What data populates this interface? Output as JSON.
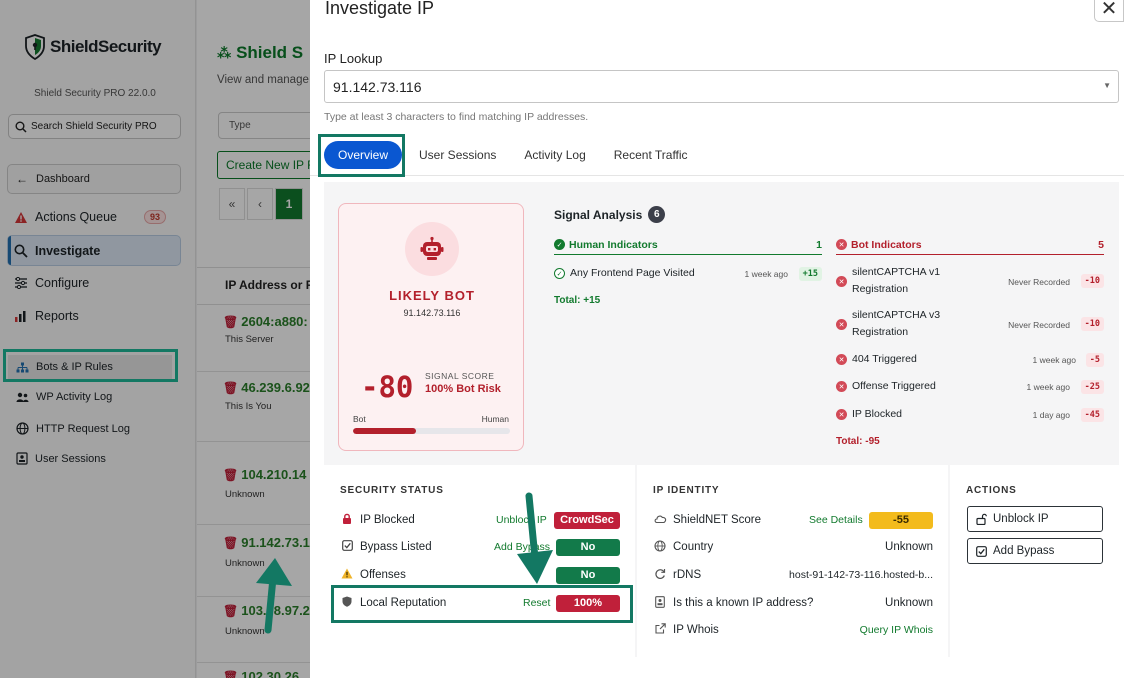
{
  "sidebar": {
    "logo_text": "ShieldSecurity",
    "version": "Shield Security PRO 22.0.0",
    "search_placeholder": "Search Shield Security PRO",
    "dashboard_label": "Dashboard",
    "main_items": [
      {
        "label": "Actions Queue",
        "badge": "93"
      },
      {
        "label": "Investigate"
      },
      {
        "label": "Configure"
      },
      {
        "label": "Reports"
      }
    ],
    "sub_items": [
      {
        "label": "Bots & IP Rules"
      },
      {
        "label": "WP Activity Log"
      },
      {
        "label": "HTTP Request Log"
      },
      {
        "label": "User Sessions"
      }
    ]
  },
  "background_page": {
    "title": "Shield S",
    "subtitle": "View and manage",
    "type_placeholder": "Type",
    "create_button": "Create New IP R",
    "pagination": {
      "first": "«",
      "prev": "‹",
      "current": "1"
    },
    "table_header": "IP Address or R",
    "rows": [
      {
        "ip": "2604:a880:",
        "note": "This Server"
      },
      {
        "ip": "46.239.6.92",
        "note": "This Is You"
      },
      {
        "ip": "104.210.14",
        "note": "Unknown"
      },
      {
        "ip": "91.142.73.1",
        "note": "Unknown"
      },
      {
        "ip": "103.78.97.2",
        "note": "Unknown"
      },
      {
        "ip": "102.30.26.",
        "note": ""
      }
    ]
  },
  "modal": {
    "title": "Investigate IP",
    "close_glyph": "✕",
    "lookup_label": "IP Lookup",
    "lookup_value": "91.142.73.116",
    "lookup_help": "Type at least 3 characters to find matching IP addresses.",
    "tabs": [
      {
        "label": "Overview",
        "active": true
      },
      {
        "label": "User Sessions"
      },
      {
        "label": "Activity Log"
      },
      {
        "label": "Recent Traffic"
      }
    ]
  },
  "bot_card": {
    "verdict": "LIKELY BOT",
    "ip": "91.142.73.116",
    "score": "-80",
    "score_label": "SIGNAL SCORE",
    "risk": "100% Bot Risk",
    "meter_left": "Bot",
    "meter_right": "Human",
    "meter_bot_fraction": 0.4
  },
  "signal_analysis": {
    "title": "Signal Analysis",
    "count": "6",
    "human": {
      "heading": "Human Indicators",
      "count": "1",
      "items": [
        {
          "name": "Any Frontend Page Visited",
          "when": "1 week ago",
          "points": "+15"
        }
      ],
      "total": "Total: +15"
    },
    "bot": {
      "heading": "Bot Indicators",
      "count": "5",
      "items": [
        {
          "name_line1": "silentCAPTCHA v1",
          "name_line2": "Registration",
          "when": "Never Recorded",
          "points": "-10"
        },
        {
          "name_line1": "silentCAPTCHA v3",
          "name_line2": "Registration",
          "when": "Never Recorded",
          "points": "-10"
        },
        {
          "name_line1": "404 Triggered",
          "name_line2": "",
          "when": "1 week ago",
          "points": "-5"
        },
        {
          "name_line1": "Offense Triggered",
          "name_line2": "",
          "when": "1 week ago",
          "points": "-25"
        },
        {
          "name_line1": "IP Blocked",
          "name_line2": "",
          "when": "1 day ago",
          "points": "-45"
        }
      ],
      "total": "Total: -95"
    }
  },
  "security_status": {
    "title": "SECURITY STATUS",
    "rows": [
      {
        "name": "IP Blocked",
        "action": "Unblock IP",
        "value": "CrowdSec",
        "color": "#c0203a"
      },
      {
        "name": "Bypass Listed",
        "action": "Add Bypass",
        "value": "No",
        "color": "#127a4a"
      },
      {
        "name": "Offenses",
        "action": "",
        "value": "No",
        "color": "#127a4a"
      },
      {
        "name": "Local Reputation",
        "action": "Reset",
        "value": "100%",
        "color": "#c0203a"
      }
    ]
  },
  "ip_identity": {
    "title": "IP IDENTITY",
    "rows": [
      {
        "name": "ShieldNET Score",
        "action": "See Details",
        "value": "-55"
      },
      {
        "name": "Country",
        "value": "Unknown"
      },
      {
        "name": "rDNS",
        "value": "host-91-142-73-116.hosted-b..."
      },
      {
        "name": "Is this a known IP address?",
        "value": "Unknown"
      },
      {
        "name": "IP Whois",
        "action": "Query IP Whois"
      }
    ]
  },
  "actions": {
    "title": "ACTIONS",
    "buttons": [
      {
        "label": "Unblock IP"
      },
      {
        "label": "Add Bypass"
      }
    ]
  },
  "colors": {
    "brand_green": "#127a2e",
    "danger": "#b3202c",
    "tab_active": "#0a57d1",
    "highlight": "#137863"
  }
}
